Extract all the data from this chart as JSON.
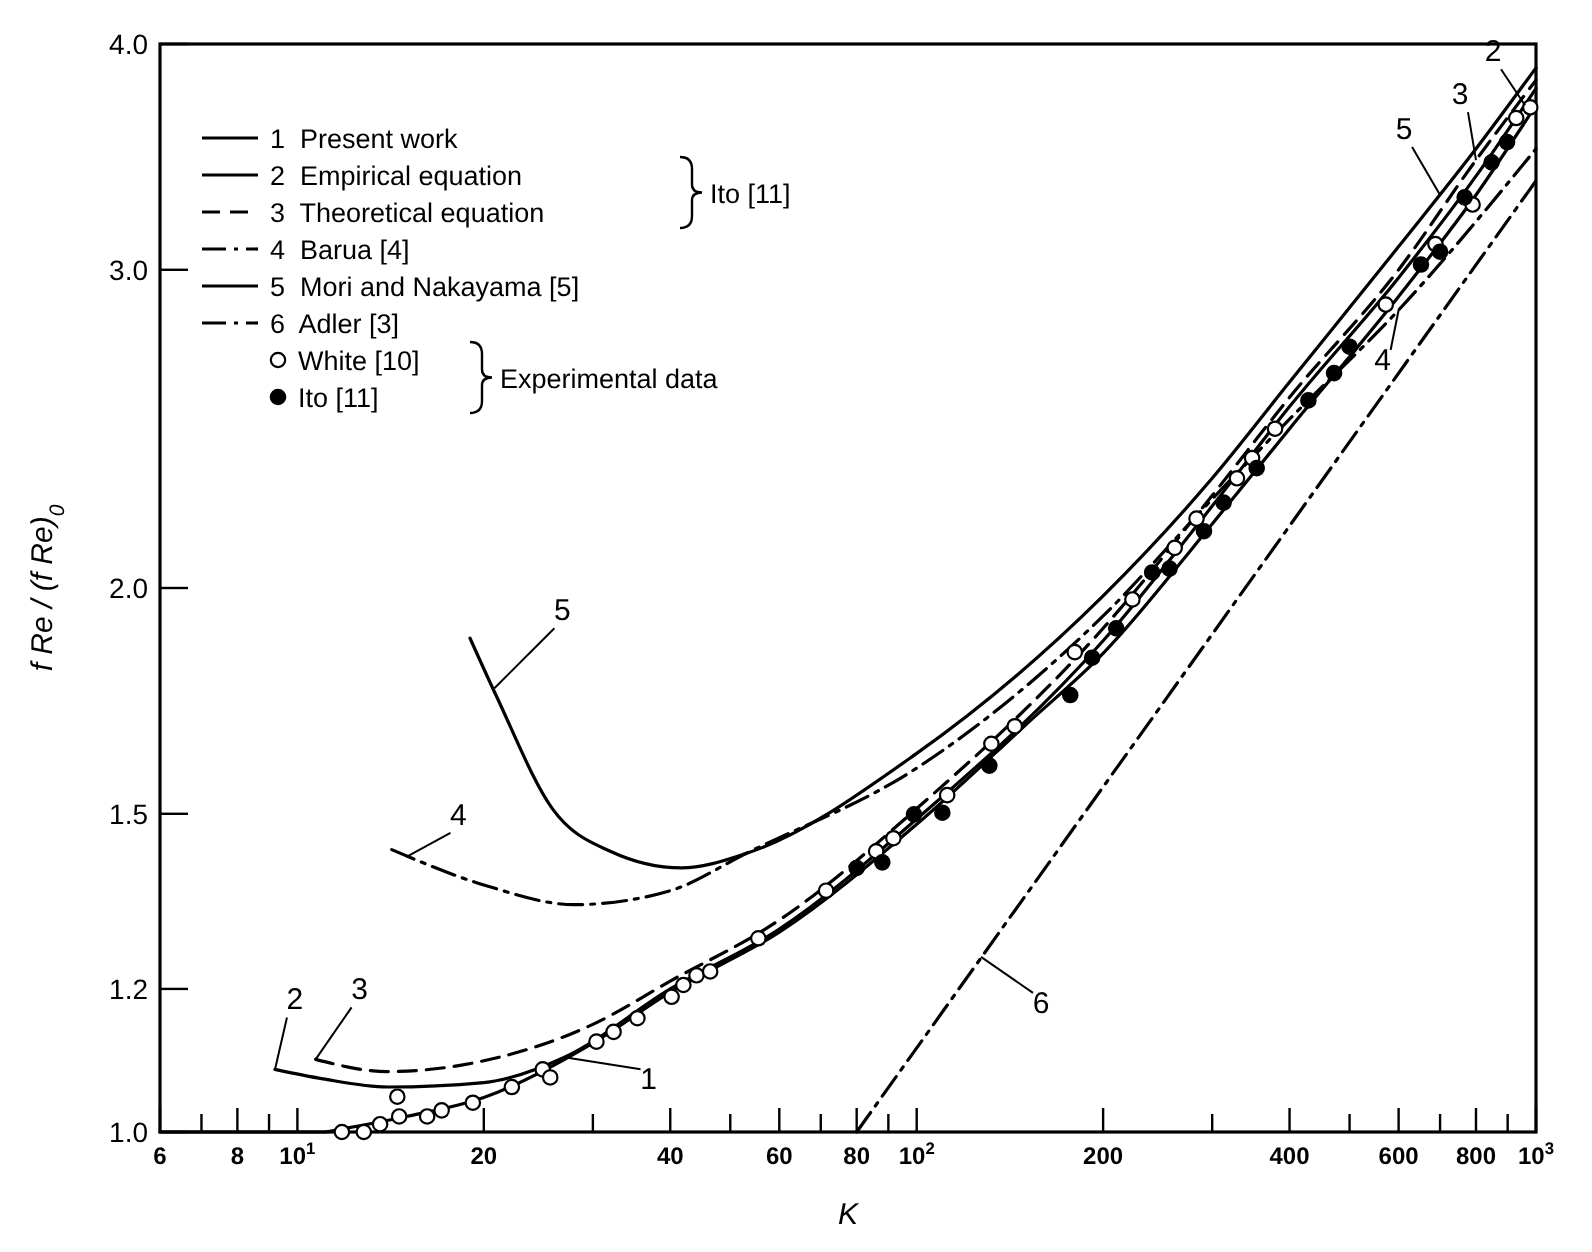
{
  "chart_data": {
    "type": "line",
    "xlabel": "K",
    "ylabel": "f Re / (f Re)$_{0}$",
    "log": "xy",
    "xlim": [
      6,
      1000
    ],
    "ylim": [
      1.0,
      4.0
    ],
    "xticks": [
      6,
      {
        "value": 7,
        "label": null
      },
      8,
      {
        "value": 9,
        "label": null
      },
      {
        "value": 10,
        "label": "10$^{1}$"
      },
      20.0,
      {
        "value": 30,
        "label": null
      },
      40,
      {
        "value": 50,
        "label": null
      },
      60,
      {
        "value": 70,
        "label": null
      },
      80,
      {
        "value": 90,
        "label": null
      },
      {
        "value": 100,
        "label": "10$^{2}$"
      },
      200,
      {
        "value": 300,
        "label": null
      },
      400,
      {
        "value": 500,
        "label": null
      },
      600,
      {
        "value": 700,
        "label": null
      },
      800,
      {
        "value": 900,
        "label": null
      },
      {
        "value": 1000,
        "label": "10$^{3}$"
      }
    ],
    "yticks": [
      {
        "value": 1.0,
        "label": "1.0"
      },
      {
        "value": 1.2,
        "label": "1.2"
      },
      {
        "value": 1.5,
        "label": "1.5"
      },
      {
        "value": 2.0,
        "label": "2.0"
      },
      {
        "value": 3.0,
        "label": "3.0"
      },
      {
        "value": 4.0,
        "label": "4.0"
      }
    ],
    "grid": false,
    "legend": "top left",
    "series": [
      {
        "name": "1 Present work",
        "color": "#000000",
        "line_style": "solid",
        "x": [
          6,
          10,
          11,
          12,
          15,
          20,
          30,
          40,
          60,
          100,
          150,
          200,
          300,
          400,
          600,
          800,
          1000
        ],
        "values": [
          1.0,
          1.0,
          1.0,
          1.005,
          1.02,
          1.045,
          1.12,
          1.195,
          1.29,
          1.48,
          1.68,
          1.84,
          2.17,
          2.45,
          2.9,
          3.3,
          3.7
        ]
      },
      {
        "name": "2 Empirical equation",
        "color": "#000000",
        "line_style": "solid",
        "x": [
          9.2,
          11,
          14,
          20,
          27,
          40,
          60,
          100,
          200,
          300,
          400,
          600,
          800,
          1000
        ],
        "values": [
          1.083,
          1.07,
          1.059,
          1.065,
          1.1,
          1.2,
          1.295,
          1.49,
          1.87,
          2.22,
          2.52,
          2.97,
          3.38,
          3.78
        ]
      },
      {
        "name": "3 Theoretical equation",
        "color": "#000000",
        "line_style": "dashed",
        "x": [
          10.7,
          14,
          20,
          30,
          40,
          60,
          100,
          200,
          300,
          400,
          600,
          800,
          1000
        ],
        "values": [
          1.097,
          1.08,
          1.095,
          1.147,
          1.212,
          1.31,
          1.51,
          1.9,
          2.25,
          2.55,
          3.0,
          3.45,
          3.82
        ]
      },
      {
        "name": "4 Barua [4]",
        "color": "#000000",
        "line_style": "dashdot",
        "x": [
          14.2,
          20,
          28,
          40,
          53,
          100,
          200,
          300,
          400,
          600,
          1000
        ],
        "values": [
          1.433,
          1.37,
          1.336,
          1.36,
          1.426,
          1.59,
          1.93,
          2.24,
          2.48,
          2.85,
          3.5
        ]
      },
      {
        "name": "5 Mori and Nakayama [5]",
        "color": "#000000",
        "line_style": "solid",
        "x": [
          19,
          21,
          25.8,
          32,
          41.7,
          53,
          100,
          200,
          300,
          400,
          600,
          800,
          1000
        ],
        "values": [
          1.876,
          1.74,
          1.51,
          1.43,
          1.4,
          1.426,
          1.62,
          1.98,
          2.3,
          2.6,
          3.09,
          3.5,
          3.88
        ]
      },
      {
        "name": "6 Adler [3]",
        "color": "#000000",
        "line_style": "dashdot",
        "x": [
          80,
          1000
        ],
        "values": [
          1.0,
          3.36
        ]
      },
      {
        "name": "White [10]",
        "type": "scatter",
        "marker": "circle",
        "color": "#ffffff",
        "x": [
          11.8,
          12.8,
          13.6,
          14.5,
          14.6,
          16.2,
          17.1,
          19.2,
          22.2,
          24.9,
          25.6,
          30.4,
          32.4,
          35.4,
          40.2,
          42,
          44.1,
          46.4,
          55.5,
          71.4,
          86,
          91.7,
          112,
          132,
          144,
          180,
          223,
          261,
          283,
          329,
          348,
          379,
          572,
          688,
          790,
          929,
          979
        ],
        "values": [
          1.0,
          1.0,
          1.01,
          1.046,
          1.02,
          1.02,
          1.028,
          1.038,
          1.059,
          1.083,
          1.072,
          1.122,
          1.136,
          1.156,
          1.188,
          1.206,
          1.221,
          1.227,
          1.28,
          1.36,
          1.43,
          1.454,
          1.536,
          1.64,
          1.677,
          1.843,
          1.971,
          2.105,
          2.185,
          2.3,
          2.36,
          2.45,
          2.87,
          3.1,
          3.26,
          3.64,
          3.69
        ]
      },
      {
        "name": "Ito [11]",
        "type": "scatter",
        "marker": "circle",
        "color": "#000000",
        "x": [
          80,
          88,
          99,
          110,
          131,
          177,
          192,
          210,
          240,
          256,
          291,
          313,
          354,
          429,
          472,
          500,
          652,
          700,
          767,
          848,
          898
        ],
        "values": [
          1.4,
          1.41,
          1.499,
          1.502,
          1.595,
          1.745,
          1.83,
          1.9,
          2.04,
          2.05,
          2.15,
          2.23,
          2.33,
          2.54,
          2.63,
          2.72,
          3.02,
          3.07,
          3.29,
          3.44,
          3.53
        ]
      }
    ],
    "annotations": [
      "Ito [11]",
      "Experimental data",
      {
        "text": "1",
        "x": 27,
        "y": 1.1
      },
      {
        "text": "2",
        "x": 9.2,
        "y": 1.083
      },
      {
        "text": "3",
        "x": 10.7,
        "y": 1.097
      },
      {
        "text": "4",
        "x": 15,
        "y": 1.42
      },
      {
        "text": "5",
        "x": 20.8,
        "y": 1.76
      },
      {
        "text": "6",
        "x": 127,
        "y": 1.25
      },
      {
        "text": "4",
        "x": 600,
        "y": 2.85
      },
      {
        "text": "5",
        "x": 700,
        "y": 3.3
      },
      {
        "text": "3",
        "x": 800,
        "y": 3.45
      },
      {
        "text": "2",
        "x": 960,
        "y": 3.7
      }
    ]
  }
}
